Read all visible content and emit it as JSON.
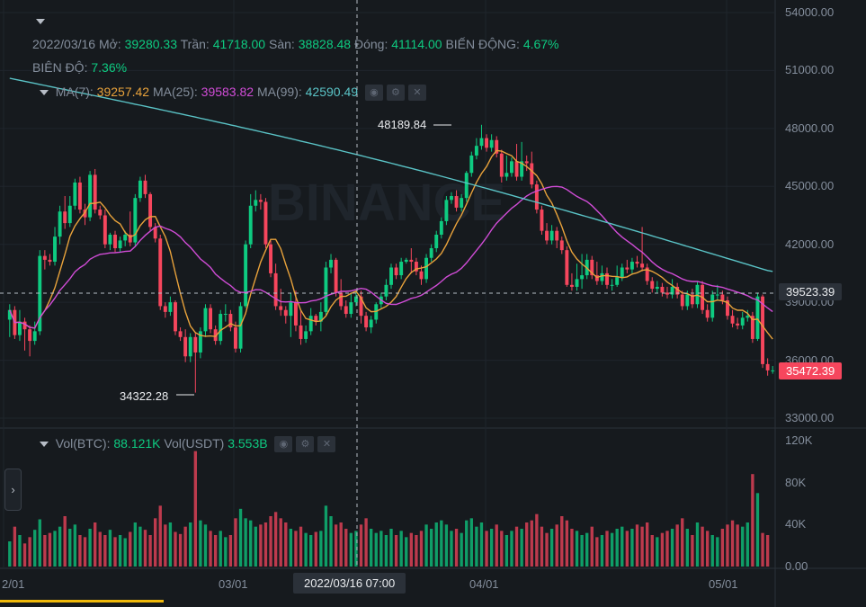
{
  "colors": {
    "up": "#0ecb81",
    "down": "#f6465d",
    "ma7": "#e8a23b",
    "ma25": "#d04cd6",
    "ma99": "#5ac3c6",
    "bg": "#161a1e"
  },
  "info": {
    "date": "2022/03/16",
    "open_label": "Mở:",
    "open": "39280.33",
    "high_label": "Trần:",
    "high": "41718.00",
    "low_label": "Sàn:",
    "low": "38828.48",
    "close_label": "Đóng:",
    "close": "41114.00",
    "change_label": "BIẾN ĐỘNG:",
    "change": "4.67%",
    "amp_label": "BIÊN ĐỘ:",
    "amp": "7.36%"
  },
  "ma_legend": {
    "ma7_label": "MA(7):",
    "ma7": "39257.42",
    "ma25_label": "MA(25):",
    "ma25": "39583.82",
    "ma99_label": "MA(99):",
    "ma99": "42590.49"
  },
  "vol_legend": {
    "btc_label": "Vol(BTC):",
    "btc": "88.121K",
    "usdt_label": "Vol(USDT)",
    "usdt": "3.553B"
  },
  "watermark": "BINANCE",
  "annotations": {
    "max": "48189.84",
    "min": "34322.28"
  },
  "tags": {
    "crosshair_price": "39523.39",
    "last_price": "35472.39",
    "crosshair_date": "2022/03/16 07:00"
  },
  "chart_data": {
    "type": "candlestick",
    "price_axis": {
      "ticks": [
        "54000.00",
        "51000.00",
        "48000.00",
        "45000.00",
        "42000.00",
        "39000.00",
        "36000.00",
        "33000.00"
      ],
      "ylim": [
        32500,
        54200
      ]
    },
    "volume_axis": {
      "ticks": [
        "120K",
        "80K",
        "40K",
        "0.00"
      ],
      "ylim": [
        0,
        120000
      ]
    },
    "x_ticks": [
      "2/01",
      "03/01",
      "04/01",
      "05/01"
    ],
    "candles": [
      [
        38100,
        38600,
        37200,
        38900
      ],
      [
        38600,
        37300,
        37100,
        38800
      ],
      [
        37300,
        38000,
        37000,
        38600
      ],
      [
        38000,
        37600,
        36500,
        38200
      ],
      [
        37600,
        37000,
        36200,
        37800
      ],
      [
        37000,
        37500,
        36800,
        38000
      ],
      [
        37500,
        41400,
        37300,
        41700
      ],
      [
        41400,
        41200,
        40700,
        41700
      ],
      [
        41200,
        41100,
        40900,
        41500
      ],
      [
        41100,
        42400,
        40900,
        42900
      ],
      [
        42400,
        43700,
        42000,
        44000
      ],
      [
        43700,
        43100,
        42800,
        44500
      ],
      [
        43100,
        44000,
        42900,
        44500
      ],
      [
        44000,
        45200,
        43800,
        45400
      ],
      [
        45200,
        43800,
        43600,
        45500
      ],
      [
        43800,
        43400,
        43000,
        44100
      ],
      [
        43400,
        45600,
        43200,
        45800
      ],
      [
        45600,
        43800,
        43600,
        45900
      ],
      [
        43800,
        43500,
        43300,
        44000
      ],
      [
        43500,
        42000,
        41800,
        43800
      ],
      [
        42000,
        42500,
        41700,
        42600
      ],
      [
        42500,
        41800,
        41600,
        42700
      ],
      [
        41800,
        42200,
        41600,
        42400
      ],
      [
        42200,
        42500,
        41900,
        42700
      ],
      [
        42500,
        42100,
        41900,
        43700
      ],
      [
        42100,
        44400,
        41900,
        44600
      ],
      [
        44400,
        45300,
        44200,
        45500
      ],
      [
        45300,
        44600,
        44400,
        45600
      ],
      [
        44600,
        42900,
        42700,
        44700
      ],
      [
        42900,
        42300,
        42100,
        43100
      ],
      [
        42300,
        38800,
        38600,
        42500
      ],
      [
        38800,
        38500,
        38200,
        39000
      ],
      [
        38500,
        39000,
        38300,
        39300
      ],
      [
        39000,
        37500,
        37300,
        39100
      ],
      [
        37500,
        37200,
        37000,
        37700
      ],
      [
        37200,
        36200,
        35900,
        37600
      ],
      [
        36200,
        37200,
        35900,
        37400
      ],
      [
        37200,
        36400,
        34322,
        37400
      ],
      [
        36400,
        37500,
        36100,
        37700
      ],
      [
        37500,
        38700,
        37200,
        38900
      ],
      [
        38700,
        37600,
        37400,
        38900
      ],
      [
        37600,
        37000,
        36800,
        37800
      ],
      [
        37000,
        38400,
        36800,
        38600
      ],
      [
        38400,
        38400,
        38000,
        38900
      ],
      [
        38400,
        37700,
        37500,
        38600
      ],
      [
        37700,
        36600,
        36400,
        38000
      ],
      [
        36600,
        38800,
        36400,
        39000
      ],
      [
        38800,
        42000,
        38700,
        42200
      ],
      [
        42000,
        44000,
        41800,
        44600
      ],
      [
        44000,
        44300,
        43700,
        44800
      ],
      [
        44300,
        44200,
        43800,
        44600
      ],
      [
        44200,
        42000,
        41800,
        44400
      ],
      [
        42000,
        40500,
        40300,
        42200
      ],
      [
        40500,
        38800,
        38600,
        41000
      ],
      [
        38800,
        38600,
        38300,
        39700
      ],
      [
        38600,
        38300,
        37900,
        38800
      ],
      [
        38300,
        39000,
        37200,
        39500
      ],
      [
        39000,
        37800,
        37500,
        39600
      ],
      [
        37800,
        37100,
        36800,
        38600
      ],
      [
        37100,
        37500,
        36900,
        37800
      ],
      [
        37500,
        38300,
        37300,
        38700
      ],
      [
        38300,
        38000,
        37800,
        38400
      ],
      [
        38000,
        38500,
        37500,
        39000
      ],
      [
        38500,
        40800,
        38300,
        41100
      ],
      [
        40800,
        41200,
        40500,
        41500
      ],
      [
        41200,
        39500,
        39300,
        41300
      ],
      [
        39500,
        38800,
        38600,
        40200
      ],
      [
        38800,
        38400,
        38200,
        39100
      ],
      [
        38400,
        39000,
        38200,
        39500
      ],
      [
        39000,
        39300,
        38800,
        39600
      ],
      [
        39300,
        38300,
        37900,
        39600
      ],
      [
        38300,
        37700,
        37500,
        38500
      ],
      [
        37700,
        38100,
        37400,
        38300
      ],
      [
        38100,
        38900,
        37900,
        39000
      ],
      [
        38900,
        39300,
        38700,
        39500
      ],
      [
        39300,
        39900,
        39100,
        40200
      ],
      [
        39900,
        40800,
        39700,
        41000
      ],
      [
        40800,
        40400,
        40200,
        41000
      ],
      [
        40400,
        41100,
        40200,
        41300
      ],
      [
        41100,
        41200,
        41000,
        41300
      ],
      [
        41200,
        41100,
        40500,
        41800
      ],
      [
        41100,
        40600,
        40400,
        41300
      ],
      [
        40600,
        40200,
        39900,
        40900
      ],
      [
        40200,
        41300,
        40000,
        41500
      ],
      [
        41300,
        41800,
        41100,
        42000
      ],
      [
        41800,
        42500,
        41600,
        42700
      ],
      [
        42500,
        43200,
        42300,
        43400
      ],
      [
        43200,
        44300,
        43000,
        44500
      ],
      [
        44300,
        44500,
        44100,
        44700
      ],
      [
        44500,
        43900,
        43700,
        44800
      ],
      [
        43900,
        44400,
        43700,
        44600
      ],
      [
        44400,
        45700,
        44200,
        45800
      ],
      [
        45700,
        46600,
        45500,
        46800
      ],
      [
        46600,
        47100,
        46400,
        47500
      ],
      [
        47100,
        47500,
        46900,
        48190
      ],
      [
        47500,
        47000,
        46800,
        47700
      ],
      [
        47000,
        47400,
        46800,
        47700
      ],
      [
        47400,
        46700,
        46500,
        47600
      ],
      [
        46700,
        45500,
        45200,
        46900
      ],
      [
        45500,
        45700,
        45300,
        46600
      ],
      [
        45700,
        46300,
        45500,
        46500
      ],
      [
        46300,
        45500,
        45300,
        47200
      ],
      [
        45500,
        46300,
        45300,
        47300
      ],
      [
        46300,
        46200,
        45800,
        46600
      ],
      [
        46200,
        45100,
        44900,
        46800
      ],
      [
        45100,
        43800,
        43600,
        45300
      ],
      [
        43800,
        42700,
        42500,
        44000
      ],
      [
        42700,
        42200,
        42000,
        43100
      ],
      [
        42200,
        42700,
        42000,
        43000
      ],
      [
        42700,
        42200,
        41800,
        42900
      ],
      [
        42200,
        41700,
        41500,
        42400
      ],
      [
        41700,
        39900,
        39800,
        41900
      ],
      [
        39900,
        39800,
        39600,
        40500
      ],
      [
        39800,
        40200,
        39600,
        41000
      ],
      [
        40200,
        40400,
        39700,
        41500
      ],
      [
        40400,
        41200,
        40200,
        41500
      ],
      [
        41200,
        40400,
        40200,
        41400
      ],
      [
        40400,
        40100,
        39900,
        41100
      ],
      [
        40100,
        40500,
        39900,
        40900
      ],
      [
        40500,
        39900,
        39700,
        40800
      ],
      [
        39900,
        39900,
        39600,
        40200
      ],
      [
        39900,
        40300,
        39800,
        40900
      ],
      [
        40300,
        40800,
        40100,
        41000
      ],
      [
        40800,
        40700,
        40500,
        41200
      ],
      [
        40700,
        41100,
        40500,
        41300
      ],
      [
        41100,
        41000,
        40800,
        41400
      ],
      [
        41000,
        40800,
        40600,
        42900
      ],
      [
        40800,
        40100,
        39900,
        41000
      ],
      [
        40100,
        39700,
        39500,
        40300
      ],
      [
        39700,
        39800,
        39500,
        40100
      ],
      [
        39800,
        39500,
        39300,
        40000
      ],
      [
        39500,
        39400,
        39200,
        39800
      ],
      [
        39400,
        39800,
        39200,
        40200
      ],
      [
        39800,
        39400,
        39200,
        40000
      ],
      [
        39400,
        38800,
        38600,
        39600
      ],
      [
        38800,
        39400,
        38600,
        39600
      ],
      [
        39400,
        38900,
        38700,
        39700
      ],
      [
        38900,
        39900,
        38700,
        40100
      ],
      [
        39900,
        38600,
        38400,
        40100
      ],
      [
        38600,
        38200,
        38000,
        38900
      ],
      [
        38200,
        39400,
        38000,
        39600
      ],
      [
        39400,
        39400,
        39100,
        39900
      ],
      [
        39400,
        39100,
        38900,
        39600
      ],
      [
        39100,
        38300,
        38100,
        39300
      ],
      [
        38300,
        37900,
        37700,
        38600
      ],
      [
        37900,
        37800,
        37600,
        38200
      ],
      [
        37800,
        38200,
        37600,
        38500
      ],
      [
        38200,
        38300,
        38000,
        38600
      ],
      [
        38300,
        37100,
        36900,
        38500
      ],
      [
        37100,
        39300,
        37000,
        39500
      ],
      [
        39300,
        35800,
        35600,
        39400
      ],
      [
        35800,
        35472,
        35200,
        36100
      ],
      [
        35472,
        35472,
        35300,
        35700
      ]
    ],
    "volumes": [
      24000,
      38000,
      30000,
      22000,
      28000,
      35000,
      45000,
      30000,
      32000,
      34000,
      38000,
      48000,
      36000,
      40000,
      30000,
      28000,
      36000,
      42000,
      33000,
      30000,
      35000,
      28000,
      30000,
      27000,
      33000,
      42000,
      38000,
      35000,
      30000,
      46000,
      58000,
      40000,
      42000,
      33000,
      31000,
      38000,
      42000,
      110000,
      44000,
      40000,
      34000,
      30000,
      34000,
      28000,
      30000,
      46000,
      55000,
      46000,
      44000,
      38000,
      40000,
      42000,
      48000,
      52000,
      46000,
      42000,
      36000,
      34000,
      38000,
      32000,
      30000,
      33000,
      34000,
      58000,
      48000,
      40000,
      42000,
      36000,
      32000,
      34000,
      40000,
      46000,
      36000,
      32000,
      34000,
      30000,
      36000,
      30000,
      34000,
      28000,
      32000,
      30000,
      34000,
      40000,
      36000,
      42000,
      44000,
      40000,
      34000,
      36000,
      32000,
      44000,
      46000,
      38000,
      42000,
      34000,
      36000,
      40000,
      34000,
      30000,
      34000,
      38000,
      36000,
      42000,
      44000,
      50000,
      38000,
      32000,
      36000,
      40000,
      48000,
      44000,
      36000,
      34000,
      30000,
      32000,
      38000,
      28000,
      30000,
      34000,
      32000,
      36000,
      38000,
      34000,
      36000,
      40000,
      38000,
      42000,
      30000,
      28000,
      32000,
      34000,
      36000,
      40000,
      46000,
      36000,
      30000,
      42000,
      38000,
      34000,
      30000,
      28000,
      36000,
      40000,
      44000,
      40000,
      38000,
      42000,
      88121,
      70000,
      32000,
      30000
    ]
  }
}
